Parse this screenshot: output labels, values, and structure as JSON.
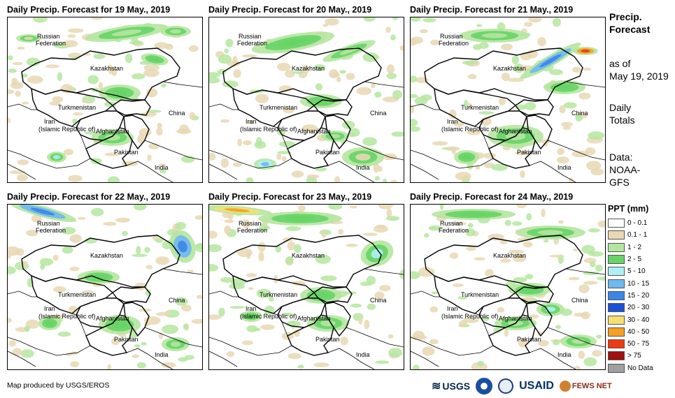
{
  "panels": [
    {
      "title": "Daily Precip. Forecast for 19 May., 2019"
    },
    {
      "title": "Daily Precip. Forecast for 20 May., 2019"
    },
    {
      "title": "Daily Precip. Forecast for 21 May., 2019"
    },
    {
      "title": "Daily Precip. Forecast for 22 May., 2019"
    },
    {
      "title": "Daily Precip. Forecast for 23 May., 2019"
    },
    {
      "title": "Daily Precip. Forecast for 24 May., 2019"
    }
  ],
  "map_labels": {
    "russia_line1": "Russian",
    "russia_line2": "Federation",
    "kazakhstan": "Kazakhstan",
    "turkmenistan": "Turkmenistan",
    "iran_line1": "Iran",
    "iran_line2": "(Islamic Republic of)",
    "afghanistan": "Afghanistan",
    "pakistan": "Pakistan",
    "china": "China",
    "india": "India"
  },
  "sidebar": {
    "heading_line1": "Precip.",
    "heading_line2": "Forecast",
    "asof_line1": "as of",
    "asof_line2": "May 19, 2019",
    "totals_line1": "Daily",
    "totals_line2": "Totals",
    "data_line1": "Data:",
    "data_line2": "NOAA-",
    "data_line3": "GFS"
  },
  "legend": {
    "title": "PPT (mm)",
    "items": [
      {
        "label": "0 - 0.1",
        "color": "#ffffff"
      },
      {
        "label": "0.1 - 1",
        "color": "#e8d8b4"
      },
      {
        "label": "1 - 2",
        "color": "#b5e6a0"
      },
      {
        "label": "2 - 5",
        "color": "#66d466"
      },
      {
        "label": "5 - 10",
        "color": "#aef0f5"
      },
      {
        "label": "10 - 15",
        "color": "#6fb8f0"
      },
      {
        "label": "15 - 20",
        "color": "#3a86e8"
      },
      {
        "label": "20 - 30",
        "color": "#1a52d6"
      },
      {
        "label": "30 - 40",
        "color": "#f5df70"
      },
      {
        "label": "40 - 50",
        "color": "#f5a020"
      },
      {
        "label": "50 - 75",
        "color": "#ee3a10"
      },
      {
        "label": "> 75",
        "color": "#a01010"
      },
      {
        "label": "No Data",
        "color": "#a0a0a0"
      }
    ]
  },
  "credit": "Map produced by USGS/EROS",
  "logos": {
    "usgs": "USGS",
    "usaid": "USAID",
    "fewsnet": "FEWS NET"
  }
}
